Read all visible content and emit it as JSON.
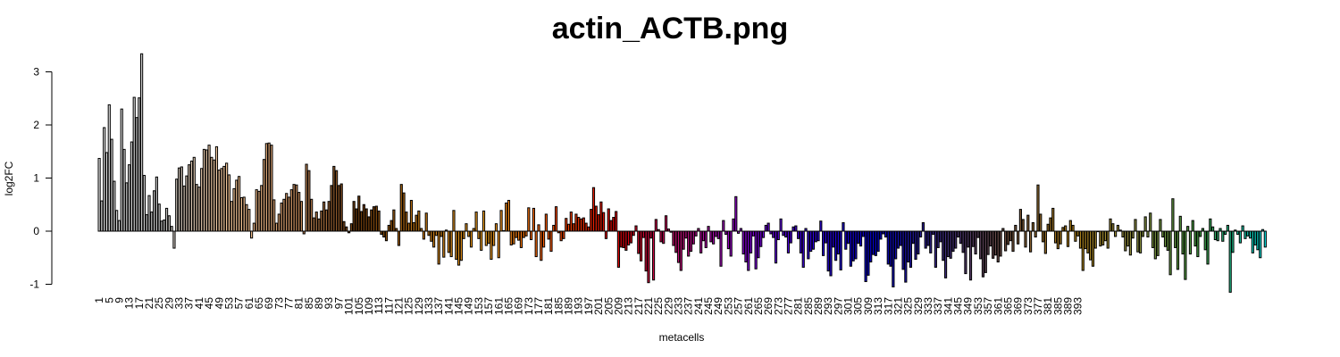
{
  "chart_data": {
    "type": "bar",
    "title": "actin_ACTB.png",
    "xlabel": "metacells",
    "ylabel": "log2FC",
    "ylim": [
      -1.15,
      3.4
    ],
    "yticks": [
      -1,
      0,
      1,
      2,
      3
    ],
    "x_tick_start": 1,
    "x_tick_step": 4,
    "x_tick_count": 99,
    "values": [
      1.37,
      0.57,
      1.95,
      1.48,
      2.38,
      1.73,
      0.94,
      0.39,
      0.2,
      2.3,
      1.54,
      0.91,
      1.25,
      1.68,
      2.52,
      2.14,
      2.51,
      3.34,
      1.05,
      0.31,
      0.67,
      0.36,
      0.76,
      1.02,
      0.51,
      0.19,
      0.21,
      0.43,
      0.29,
      0.09,
      -0.32,
      0.98,
      1.19,
      1.21,
      0.85,
      1.04,
      1.25,
      1.32,
      1.39,
      0.88,
      0.83,
      1.18,
      1.54,
      1.53,
      1.62,
      1.39,
      1.34,
      1.59,
      1.15,
      1.18,
      1.22,
      1.28,
      1.06,
      0.56,
      0.8,
      0.96,
      1.03,
      0.63,
      0.64,
      0.5,
      0.41,
      -0.13,
      0.15,
      0.78,
      0.75,
      0.86,
      1.35,
      1.65,
      1.66,
      1.62,
      0.59,
      0.15,
      0.32,
      0.53,
      0.6,
      0.71,
      0.64,
      0.78,
      0.88,
      0.87,
      0.73,
      0.56,
      -0.05,
      1.26,
      1.14,
      0.6,
      0.25,
      0.36,
      0.23,
      0.38,
      0.55,
      0.4,
      0.56,
      0.86,
      1.22,
      1.14,
      0.86,
      0.89,
      0.18,
      0.08,
      -0.03,
      0.14,
      0.56,
      0.42,
      0.66,
      0.37,
      0.5,
      0.42,
      0.27,
      0.4,
      0.46,
      0.47,
      0.38,
      -0.06,
      -0.11,
      -0.18,
      0.11,
      0.2,
      0.4,
      0.05,
      -0.27,
      0.88,
      0.72,
      0.36,
      0.15,
      0.58,
      0.16,
      0.3,
      0.38,
      0.05,
      -0.15,
      0.34,
      -0.08,
      -0.19,
      -0.3,
      -0.08,
      -0.62,
      -0.1,
      -0.49,
      0.02,
      -0.4,
      -0.48,
      0.39,
      -0.53,
      -0.64,
      -0.55,
      -0.14,
      0.14,
      -0.1,
      -0.3,
      0.05,
      0.36,
      -0.14,
      -0.36,
      0.38,
      -0.27,
      -0.23,
      -0.53,
      -0.27,
      0.14,
      -0.5,
      0.39,
      0.01,
      0.53,
      0.58,
      -0.26,
      -0.24,
      -0.12,
      -0.17,
      -0.31,
      -0.12,
      -0.09,
      0.44,
      -0.16,
      0.43,
      -0.48,
      0.12,
      -0.55,
      -0.3,
      0.32,
      -0.15,
      -0.38,
      0.11,
      0.46,
      -0.03,
      -0.18,
      -0.14,
      0.24,
      0.13,
      0.36,
      0.14,
      0.32,
      0.26,
      0.23,
      0.25,
      0.15,
      0.08,
      0.41,
      0.82,
      0.47,
      0.31,
      0.55,
      0.35,
      -0.14,
      0.42,
      0.2,
      0.26,
      0.37,
      -0.68,
      -0.3,
      -0.31,
      -0.36,
      -0.26,
      -0.22,
      -0.08,
      0.1,
      -0.42,
      -0.56,
      -0.12,
      -0.75,
      -0.97,
      -0.13,
      -0.92,
      0.22,
      0.03,
      -0.2,
      -0.23,
      0.29,
      0.04,
      -0.02,
      -0.27,
      -0.4,
      -0.59,
      -0.74,
      -0.34,
      -0.13,
      -0.47,
      -0.38,
      -0.24,
      -0.09,
      0.05,
      -0.41,
      -0.18,
      -0.31,
      0.09,
      -0.2,
      -0.24,
      -0.1,
      -0.14,
      -0.66,
      0.2,
      -0.06,
      -0.33,
      -0.47,
      0.23,
      0.65,
      -0.04,
      0.05,
      -0.43,
      -0.58,
      -0.74,
      -0.41,
      -0.09,
      -0.71,
      -0.5,
      -0.29,
      -0.12,
      0.11,
      0.15,
      -0.05,
      -0.12,
      -0.6,
      -0.16,
      0.23,
      -0.08,
      -0.11,
      -0.41,
      -0.22,
      0.08,
      0.1,
      -0.14,
      -0.41,
      -0.68,
      0.05,
      -0.52,
      -0.38,
      -0.34,
      -0.2,
      -0.18,
      0.19,
      -0.46,
      -0.22,
      -0.75,
      -0.84,
      -0.3,
      -0.55,
      -0.43,
      -0.73,
      0.16,
      -0.34,
      -0.23,
      -0.66,
      -0.56,
      -0.52,
      -0.23,
      -0.28,
      -0.1,
      -0.95,
      -0.83,
      -0.58,
      -0.44,
      -0.46,
      -0.38,
      -0.15,
      -0.05,
      -0.11,
      -0.62,
      -0.66,
      -1.05,
      -0.52,
      -0.32,
      -0.27,
      -0.72,
      -0.96,
      -0.58,
      -0.68,
      -0.23,
      -0.53,
      -0.43,
      -0.11,
      0.16,
      -0.32,
      -0.27,
      -0.41,
      -0.06,
      -0.68,
      -0.31,
      -0.2,
      -0.55,
      -0.88,
      -0.48,
      -0.51,
      -0.38,
      -0.32,
      -0.11,
      -0.23,
      -0.4,
      -0.8,
      -0.3,
      -0.92,
      -0.29,
      -0.43,
      -0.12,
      -0.52,
      -0.86,
      -0.78,
      -0.44,
      -0.28,
      -0.51,
      -0.45,
      -0.58,
      -0.47,
      0.05,
      -0.37,
      -0.25,
      -0.18,
      -0.38,
      0.11,
      -0.24,
      0.41,
      0.22,
      -0.3,
      0.3,
      -0.39,
      0.16,
      -0.11,
      0.87,
      0.32,
      -0.2,
      -0.42,
      0.13,
      0.25,
      0.43,
      -0.22,
      -0.33,
      -0.24,
      0.07,
      0.1,
      -0.29,
      0.2,
      0.11,
      -0.19,
      -0.09,
      -0.32,
      -0.74,
      -0.33,
      -0.41,
      -0.54,
      -0.66,
      -0.32,
      -0.01,
      -0.28,
      -0.26,
      -0.18,
      -0.32,
      0.23,
      0.14,
      -0.1,
      0.11,
      0.02,
      -0.11,
      -0.37,
      -0.28,
      -0.45,
      -0.13,
      0.22,
      -0.39,
      -0.41,
      -0.1,
      0.27,
      -0.11,
      0.34,
      -0.31,
      -0.52,
      -0.46,
      0.22,
      -0.11,
      -0.29,
      -0.36,
      -0.82,
      0.61,
      -0.31,
      -0.72,
      0.28,
      -0.43,
      -0.91,
      0.09,
      -0.43,
      0.2,
      -0.28,
      -0.48,
      -0.1,
      0.05,
      -0.35,
      -0.62,
      0.23,
      0.08,
      -0.16,
      -0.18,
      0.05,
      -0.19,
      -0.06,
      0.11,
      -1.15,
      -0.4,
      0.02,
      -0.06,
      -0.22,
      0.1,
      -0.14,
      -0.09,
      -0.13,
      -0.41,
      -0.26,
      -0.35,
      -0.5,
      0.03,
      -0.3
    ]
  },
  "colors": {
    "background": "#ffffff",
    "axis": "#000000",
    "bar_outline": "#000000",
    "palette_stops": [
      "#e6e6e6",
      "#c0c0c0",
      "#ffcf9e",
      "#d19564",
      "#6b3a0c",
      "#c97a14",
      "#f0a020",
      "#ff5500",
      "#e00000",
      "#c0107a",
      "#8a00e0",
      "#3000e0",
      "#0000d0",
      "#3a2a80",
      "#705040",
      "#b08018",
      "#909040",
      "#40a040",
      "#00e0e0"
    ]
  }
}
